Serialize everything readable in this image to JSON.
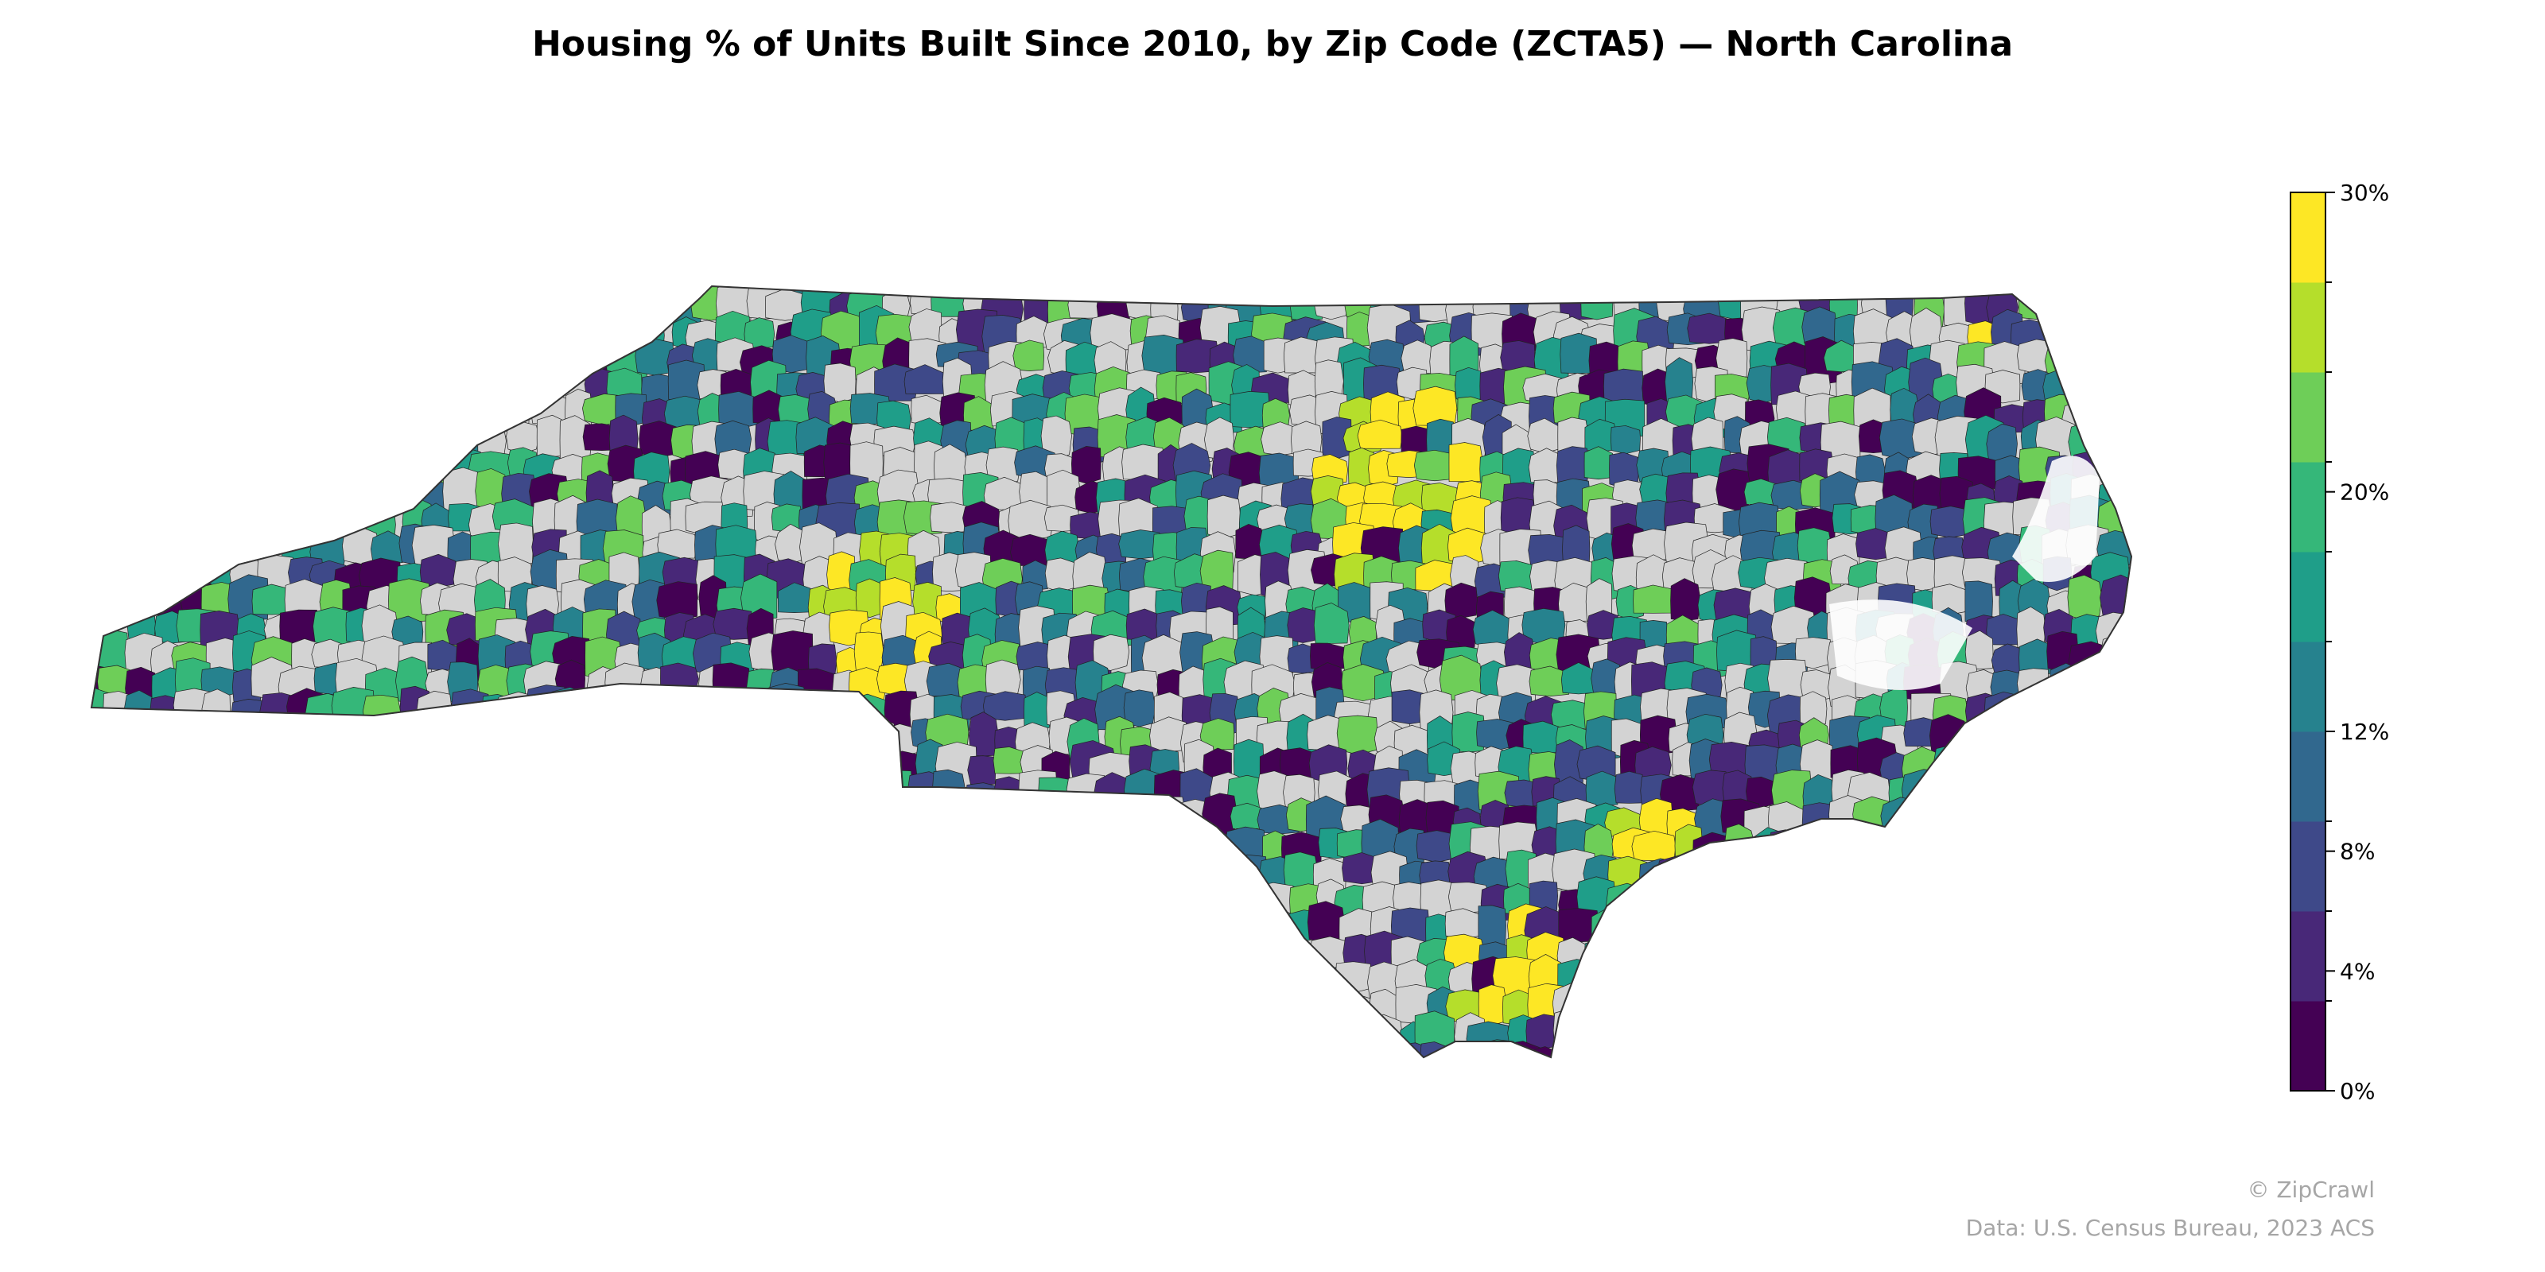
{
  "title": "Housing % of Units Built Since 2010, by Zip Code (ZCTA5) — North Carolina",
  "map": {
    "region": "North Carolina",
    "geography": "ZCTA5",
    "no_data_color": "#d3d3d3",
    "border_color": "#000000",
    "approximate_hotspots": [
      {
        "area": "Raleigh-Durham / Research Triangle",
        "value_bin": "30%"
      },
      {
        "area": "Charlotte region",
        "value_bin": "30%"
      },
      {
        "area": "Wilmington / Brunswick coast",
        "value_bin": "30%"
      },
      {
        "area": "Onslow / Jacksonville",
        "value_bin": "30%"
      },
      {
        "area": "Corolla / Outer Banks north",
        "value_bin": "30%"
      }
    ]
  },
  "colorbar": {
    "min": 0,
    "max": 30,
    "unit": "%",
    "ticks": [
      "0%",
      "4%",
      "8%",
      "12%",
      "20%",
      "30%"
    ],
    "tick_values": [
      0,
      4,
      8,
      12,
      20,
      30
    ],
    "bins": [
      {
        "from": 0,
        "to": 2,
        "color": "#440154"
      },
      {
        "from": 2,
        "to": 4,
        "color": "#482878"
      },
      {
        "from": 4,
        "to": 6,
        "color": "#3e4989"
      },
      {
        "from": 6,
        "to": 8,
        "color": "#31688e"
      },
      {
        "from": 8,
        "to": 10,
        "color": "#26828e"
      },
      {
        "from": 10,
        "to": 12,
        "color": "#1f9e89"
      },
      {
        "from": 12,
        "to": 15,
        "color": "#35b779"
      },
      {
        "from": 15,
        "to": 20,
        "color": "#6ece58"
      },
      {
        "from": 20,
        "to": 25,
        "color": "#b5de2b"
      },
      {
        "from": 25,
        "to": 30,
        "color": "#fde725"
      }
    ]
  },
  "credits": {
    "brand": "© ZipCrawl",
    "source": "Data: U.S. Census Bureau, 2023 ACS"
  }
}
